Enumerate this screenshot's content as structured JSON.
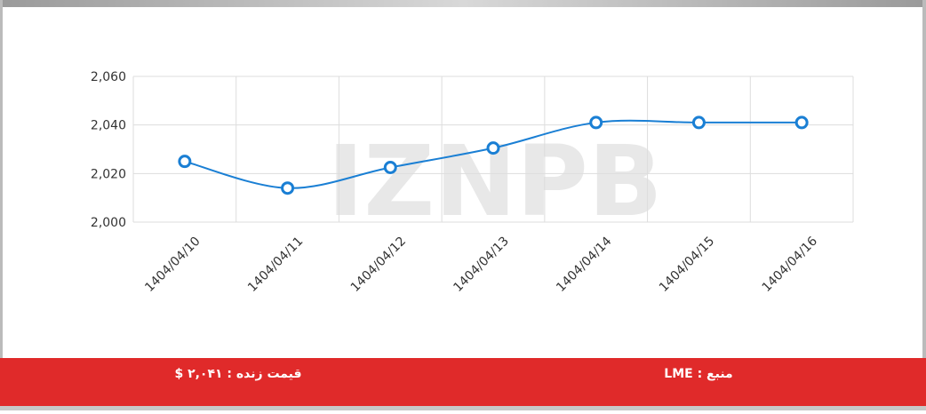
{
  "chart_data": {
    "type": "line",
    "watermark": "IZNPB",
    "categories": [
      "1404/04/10",
      "1404/04/11",
      "1404/04/12",
      "1404/04/13",
      "1404/04/14",
      "1404/04/15",
      "1404/04/16"
    ],
    "series": [
      {
        "name": "LME",
        "color": "#1a7fd4",
        "values": [
          2025,
          2014,
          2022.5,
          2030.5,
          2041,
          2041,
          2041
        ]
      }
    ],
    "ylim": [
      2000,
      2060
    ],
    "yticks": [
      {
        "value": 2000,
        "label": "2,000"
      },
      {
        "value": 2020,
        "label": "2,020"
      },
      {
        "value": 2040,
        "label": "2,040"
      },
      {
        "value": 2060,
        "label": "2,060"
      }
    ],
    "grid": true
  },
  "footer": {
    "price": "قیمت زنده : ۲,۰۴۱ $",
    "source": "منبع : LME"
  }
}
